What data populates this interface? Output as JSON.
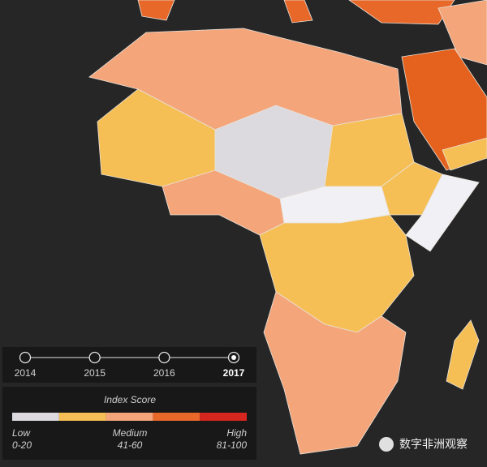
{
  "timeline": {
    "years": [
      "2014",
      "2015",
      "2016",
      "2017"
    ],
    "selected": 3
  },
  "legend": {
    "title": "Index Score",
    "swatches": [
      "#dcdadf",
      "#f6bf55",
      "#f4a57a",
      "#e8682a",
      "#d7261e"
    ],
    "labels": [
      {
        "name": "Low",
        "range": "0-20"
      },
      {
        "name": "Medium",
        "range": "41-60"
      },
      {
        "name": "High",
        "range": "81-100"
      }
    ]
  },
  "watermark": "数字非洲观察"
}
